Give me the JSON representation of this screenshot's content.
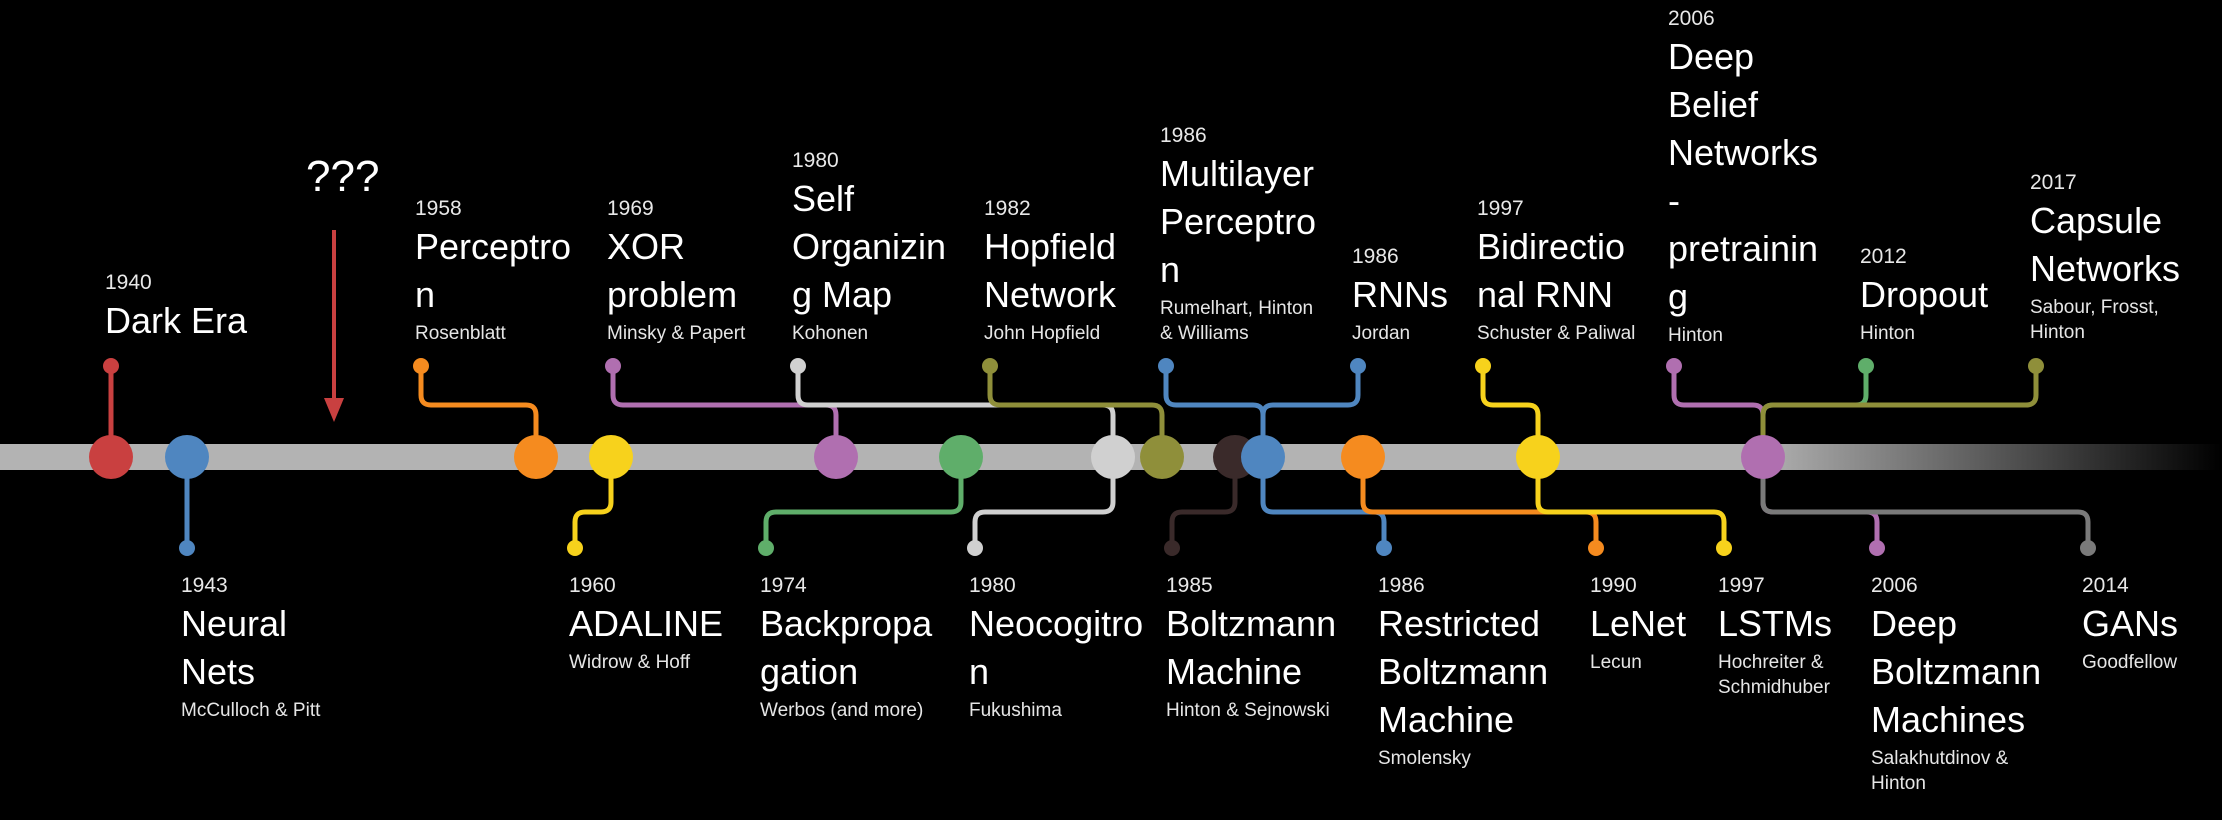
{
  "question_mark": "???",
  "events": [
    {
      "id": "dark-era",
      "year": "1940",
      "title": [
        "Dark Era"
      ],
      "author": [],
      "color": "#c94040"
    },
    {
      "id": "neural-nets",
      "year": "1943",
      "title": [
        "Neural",
        "Nets"
      ],
      "author": [
        "McCulloch & Pitt"
      ],
      "color": "#4f86c0"
    },
    {
      "id": "perceptron",
      "year": "1958",
      "title": [
        "Perceptro",
        "n"
      ],
      "author": [
        "Rosenblatt"
      ],
      "color": "#f58b1f"
    },
    {
      "id": "adaline",
      "year": "1960",
      "title": [
        "ADALINE"
      ],
      "author": [
        "Widrow & Hoff"
      ],
      "color": "#f7d21c"
    },
    {
      "id": "xor-problem",
      "year": "1969",
      "title": [
        "XOR",
        "problem"
      ],
      "author": [
        "Minsky & Papert"
      ],
      "color": "#b06fb0"
    },
    {
      "id": "backpropagation",
      "year": "1974",
      "title": [
        "Backpropa",
        "gation"
      ],
      "author": [
        "Werbos (and more)"
      ],
      "color": "#5fae6a"
    },
    {
      "id": "self-organizing-map",
      "year": "1980",
      "title": [
        "Self",
        "Organizin",
        "g Map"
      ],
      "author": [
        "Kohonen"
      ],
      "color": "#d0d0d0"
    },
    {
      "id": "neocognitron",
      "year": "1980",
      "title": [
        "Neocogitro",
        "n"
      ],
      "author": [
        "Fukushima"
      ],
      "color": "#d0d0d0"
    },
    {
      "id": "hopfield-network",
      "year": "1982",
      "title": [
        "Hopfield",
        "Network"
      ],
      "author": [
        "John Hopfield"
      ],
      "color": "#8f8f3a"
    },
    {
      "id": "boltzmann-machine",
      "year": "1985",
      "title": [
        "Boltzmann",
        "Machine"
      ],
      "author": [
        "Hinton & Sejnowski"
      ],
      "color": "#3a2a2a"
    },
    {
      "id": "multilayer-perceptron",
      "year": "1986",
      "title": [
        "Multilayer",
        "Perceptro",
        "n"
      ],
      "author": [
        "Rumelhart, Hinton",
        "& Williams"
      ],
      "color": "#4f86c0"
    },
    {
      "id": "rnns",
      "year": "1986",
      "title": [
        "RNNs"
      ],
      "author": [
        "Jordan"
      ],
      "color": "#4f86c0"
    },
    {
      "id": "restricted-boltzmann-machine",
      "year": "1986",
      "title": [
        "Restricted",
        "Boltzmann",
        "Machine"
      ],
      "author": [
        "Smolensky"
      ],
      "color": "#4f86c0"
    },
    {
      "id": "lenet",
      "year": "1990",
      "title": [
        "LeNet"
      ],
      "author": [
        "Lecun"
      ],
      "color": "#f58b1f"
    },
    {
      "id": "bidirectional-rnn",
      "year": "1997",
      "title": [
        "Bidirectio",
        "nal RNN"
      ],
      "author": [
        "Schuster & Paliwal"
      ],
      "color": "#f7d21c"
    },
    {
      "id": "lstms",
      "year": "1997",
      "title": [
        "LSTMs"
      ],
      "author": [
        "Hochreiter &",
        "Schmidhuber"
      ],
      "color": "#f7d21c"
    },
    {
      "id": "deep-belief-networks",
      "year": "2006",
      "title": [
        "Deep",
        "Belief",
        "Networks",
        "-",
        "pretrainin",
        "g"
      ],
      "author": [
        "Hinton"
      ],
      "color": "#b06fb0"
    },
    {
      "id": "deep-boltzmann-machines",
      "year": "2006",
      "title": [
        "Deep",
        "Boltzmann",
        "Machines"
      ],
      "author": [
        "Salakhutdinov &",
        "Hinton"
      ],
      "color": "#b06fb0"
    },
    {
      "id": "dropout",
      "year": "2012",
      "title": [
        "Dropout"
      ],
      "author": [
        "Hinton"
      ],
      "color": "#5fae6a"
    },
    {
      "id": "gans",
      "year": "2014",
      "title": [
        "GANs"
      ],
      "author": [
        "Goodfellow"
      ],
      "color": "#7a7a7a"
    },
    {
      "id": "capsule-networks",
      "year": "2017",
      "title": [
        "Capsule",
        "Networks"
      ],
      "author": [
        "Sabour, Frosst,",
        "Hinton"
      ],
      "color": "#8f8f3a"
    }
  ]
}
